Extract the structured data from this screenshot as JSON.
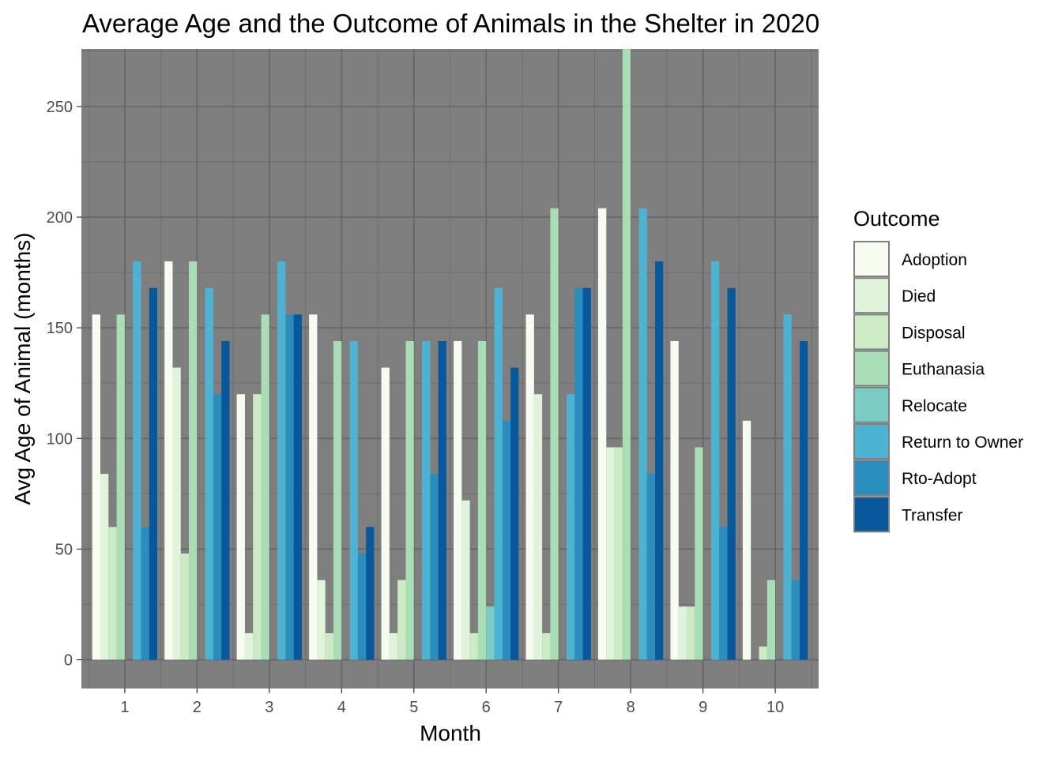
{
  "chart_data": {
    "type": "bar",
    "title": "Average Age and the Outcome of Animals in the Shelter in 2020",
    "xlabel": "Month",
    "ylabel": "Avg Age of Animal (months)",
    "categories": [
      "1",
      "2",
      "3",
      "4",
      "5",
      "6",
      "7",
      "8",
      "9",
      "10"
    ],
    "yticks": [
      0,
      50,
      100,
      150,
      200,
      250
    ],
    "ylim": [
      -13,
      276
    ],
    "grid": true,
    "legend": {
      "title": "Outcome",
      "position": "right"
    },
    "series": [
      {
        "name": "Adoption",
        "color": "#f7fcf0",
        "values": [
          156,
          180,
          120,
          156,
          132,
          144,
          156,
          204,
          144,
          108
        ]
      },
      {
        "name": "Died",
        "color": "#e0f3db",
        "values": [
          84,
          132,
          12,
          36,
          12,
          72,
          120,
          96,
          24,
          0
        ]
      },
      {
        "name": "Disposal",
        "color": "#ccebc5",
        "values": [
          60,
          48,
          120,
          12,
          36,
          12,
          12,
          96,
          24,
          6
        ]
      },
      {
        "name": "Euthanasia",
        "color": "#a8ddb5",
        "values": [
          156,
          180,
          156,
          144,
          144,
          144,
          204,
          276,
          96,
          36
        ]
      },
      {
        "name": "Relocate",
        "color": "#7bccc4",
        "values": [
          null,
          null,
          null,
          null,
          null,
          24,
          null,
          null,
          null,
          null
        ]
      },
      {
        "name": "Return to Owner",
        "color": "#4eb3d3",
        "values": [
          180,
          168,
          180,
          144,
          144,
          168,
          120,
          204,
          180,
          156
        ]
      },
      {
        "name": "Rto-Adopt",
        "color": "#2b8cbe",
        "values": [
          60,
          120,
          156,
          48,
          84,
          108,
          168,
          84,
          60,
          36
        ]
      },
      {
        "name": "Transfer",
        "color": "#08589e",
        "values": [
          168,
          144,
          156,
          60,
          144,
          132,
          168,
          180,
          168,
          144
        ]
      }
    ]
  }
}
